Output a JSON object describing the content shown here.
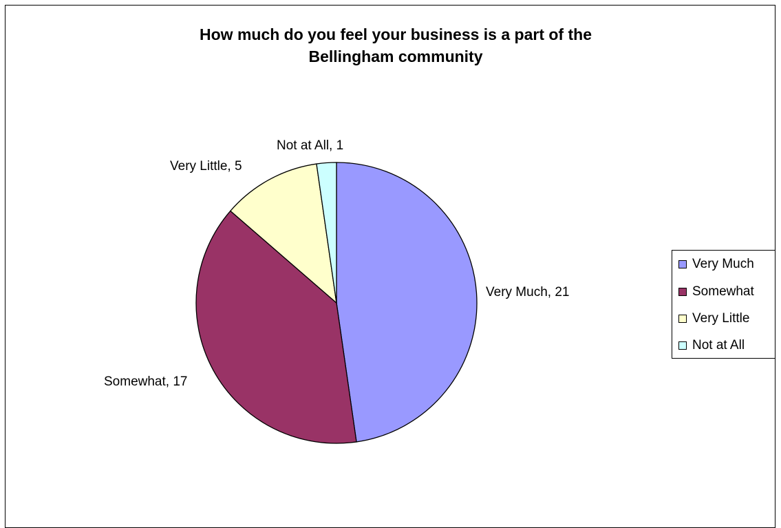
{
  "chart_data": {
    "type": "pie",
    "title": "How much do you feel your business is a part of the Bellingham community",
    "title_lines": [
      "How much do you feel your business is a part of the",
      "Bellingham community"
    ],
    "categories": [
      "Very Much",
      "Somewhat",
      "Very Little",
      "Not at All"
    ],
    "values": [
      21,
      17,
      5,
      1
    ],
    "data_labels": [
      "Very Much, 21",
      "Somewhat, 17",
      "Very Little, 5",
      "Not at All, 1"
    ],
    "colors": [
      "#9999ff",
      "#993366",
      "#ffffcc",
      "#ccffff"
    ],
    "legend": {
      "position": "right",
      "entries": [
        "Very Much",
        "Somewhat",
        "Very Little",
        "Not at All"
      ]
    }
  }
}
